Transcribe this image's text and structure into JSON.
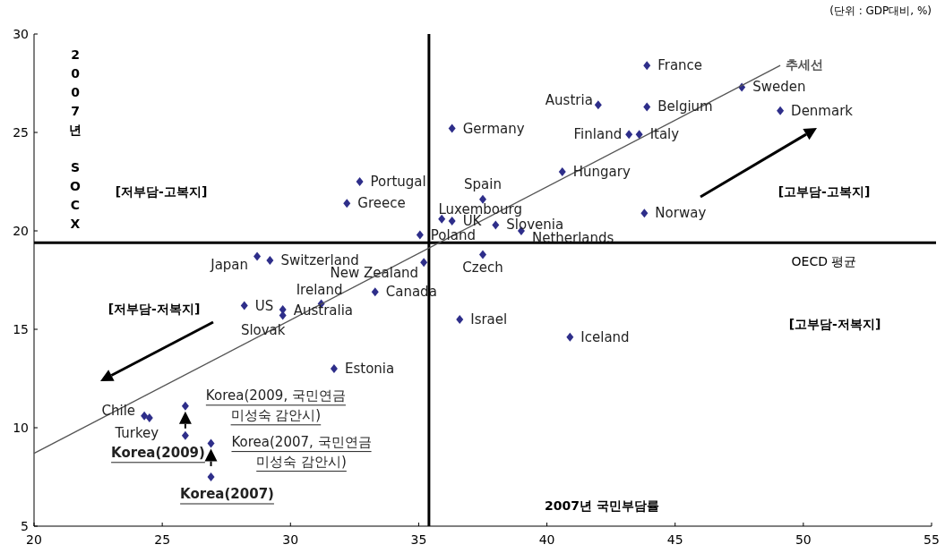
{
  "chart_data": {
    "type": "scatter",
    "xlabel": "2007년 국민부담률",
    "ylabel": "2007년 SOCX",
    "xlim": [
      20,
      55
    ],
    "ylim": [
      5,
      30
    ],
    "xticks": [
      20,
      25,
      30,
      35,
      40,
      45,
      50,
      55
    ],
    "yticks": [
      5,
      10,
      15,
      20,
      25,
      30
    ],
    "series": [
      {
        "marker": "diamond",
        "color": "#2e2e8a",
        "x": [
          43.9,
          47.6,
          49.1,
          42.0,
          43.9,
          43.2,
          43.6,
          36.3,
          40.6,
          37.5,
          32.7,
          32.2,
          35.9,
          36.3,
          38.0,
          39.0,
          43.8,
          35.05,
          37.5,
          28.7,
          29.2,
          35.2,
          33.3,
          31.2,
          28.2,
          29.7,
          29.7,
          36.6,
          40.9,
          31.7,
          24.3,
          24.5,
          25.9,
          25.9,
          26.9,
          26.9
        ],
        "values": [
          28.4,
          27.3,
          26.1,
          26.4,
          26.3,
          24.9,
          24.9,
          25.2,
          23.0,
          21.6,
          22.5,
          21.4,
          20.6,
          20.5,
          20.3,
          20.0,
          20.9,
          19.8,
          18.8,
          18.7,
          18.5,
          18.4,
          16.9,
          16.3,
          16.2,
          16.0,
          15.7,
          15.5,
          14.6,
          13.0,
          10.6,
          10.5,
          11.1,
          9.6,
          9.2,
          7.5
        ]
      },
      {
        "type": "line",
        "marker": "none",
        "name": "추세선",
        "color": "#555555",
        "x": [
          20,
          49.1
        ],
        "values": [
          8.7,
          28.4
        ]
      }
    ],
    "ref_lines": [
      {
        "axis": "x",
        "value": 35.4,
        "color": "#000000"
      },
      {
        "axis": "y",
        "value": 19.4,
        "label": "OECD 평균",
        "color": "#000000"
      }
    ],
    "annotations": [
      "(단위 : GDP대비, %)",
      "[저부담-고복지]",
      "[고부담-고복지]",
      "[저부담-저복지]",
      "[고부담-저복지]",
      {
        "text": "France",
        "x": 43.9,
        "y": 28.4
      },
      {
        "text": "Sweden",
        "x": 47.6,
        "y": 27.3
      },
      {
        "text": "Denmark",
        "x": 49.1,
        "y": 26.1
      },
      {
        "text": "Austria",
        "x": 42.0,
        "y": 26.4
      },
      {
        "text": "Belgium",
        "x": 43.9,
        "y": 26.3
      },
      {
        "text": "Finland",
        "x": 43.2,
        "y": 24.9
      },
      {
        "text": "Italy",
        "x": 43.6,
        "y": 24.9
      },
      {
        "text": "Germany",
        "x": 36.3,
        "y": 25.2
      },
      {
        "text": "Hungary",
        "x": 40.6,
        "y": 23.0
      },
      {
        "text": "Spain",
        "x": 37.5,
        "y": 21.6
      },
      {
        "text": "Portugal",
        "x": 32.7,
        "y": 22.5
      },
      {
        "text": "Greece",
        "x": 32.2,
        "y": 21.4
      },
      {
        "text": "Luxembourg",
        "x": 35.9,
        "y": 20.6
      },
      {
        "text": "UK",
        "x": 36.3,
        "y": 20.5
      },
      {
        "text": "Slovenia",
        "x": 38.0,
        "y": 20.3
      },
      {
        "text": "Netherlands",
        "x": 39.0,
        "y": 20.0
      },
      {
        "text": "Norway",
        "x": 43.8,
        "y": 20.9
      },
      {
        "text": "Poland",
        "x": 35.05,
        "y": 19.8
      },
      {
        "text": "Czech",
        "x": 37.5,
        "y": 18.8
      },
      {
        "text": "Japan",
        "x": 28.7,
        "y": 18.7
      },
      {
        "text": "Switzerland",
        "x": 29.2,
        "y": 18.5
      },
      {
        "text": "New Zealand",
        "x": 35.2,
        "y": 18.4
      },
      {
        "text": "Canada",
        "x": 33.3,
        "y": 16.9
      },
      {
        "text": "Ireland",
        "x": 31.2,
        "y": 16.3
      },
      {
        "text": "US",
        "x": 28.2,
        "y": 16.2
      },
      {
        "text": "Australia",
        "x": 29.7,
        "y": 16.0
      },
      {
        "text": "Slovak",
        "x": 29.7,
        "y": 15.7
      },
      {
        "text": "Israel",
        "x": 36.6,
        "y": 15.5
      },
      {
        "text": "Iceland",
        "x": 40.9,
        "y": 14.6
      },
      {
        "text": "Estonia",
        "x": 31.7,
        "y": 13.0
      },
      {
        "text": "Chile",
        "x": 24.3,
        "y": 10.6
      },
      {
        "text": "Turkey",
        "x": 24.5,
        "y": 10.5
      },
      {
        "text": "Korea(2009,  국민연금\n미성숙 감안시)",
        "x": 25.9,
        "y": 11.1
      },
      {
        "text": "Korea(2009)",
        "x": 25.9,
        "y": 9.6
      },
      {
        "text": "Korea(2007,  국민연금\n미성숙 감안시)",
        "x": 26.9,
        "y": 9.2
      },
      {
        "text": "Korea(2007)",
        "x": 26.9,
        "y": 7.5
      }
    ]
  }
}
